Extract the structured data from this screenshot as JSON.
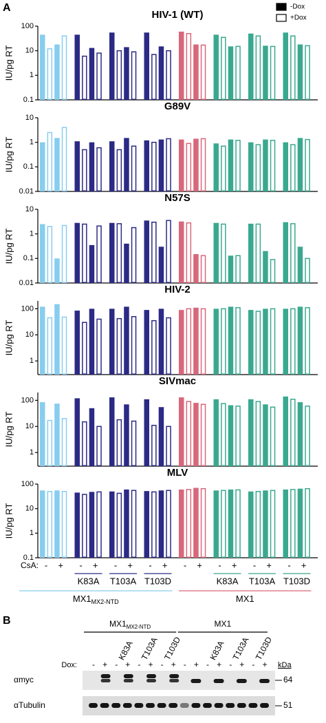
{
  "panel_a": "A",
  "panel_b": "B",
  "chart_data": [
    {
      "type": "bar",
      "title": "HIV-1 (WT)",
      "ylabel": "IU/pg RT",
      "log_scale": true,
      "legend": "top-right",
      "ylim": [
        0.1,
        100
      ],
      "yticks": [
        0.1,
        1,
        10,
        100
      ],
      "series": [
        {
          "name": "-Dox",
          "style": "filled",
          "values": [
            45,
            18,
            45,
            13,
            55,
            14,
            55,
            15,
            60,
            18,
            45,
            15,
            50,
            16,
            55,
            18
          ]
        },
        {
          "name": "+Dox",
          "style": "open",
          "values": [
            12,
            40,
            6,
            8,
            10,
            9,
            7,
            10,
            50,
            17,
            35,
            15,
            40,
            15,
            40,
            16
          ]
        }
      ]
    },
    {
      "type": "bar",
      "title": "G89V",
      "ylabel": "IU/pg RT",
      "log_scale": true,
      "ylim": [
        0.01,
        10
      ],
      "yticks": [
        0.01,
        0.1,
        1,
        10
      ],
      "series": [
        {
          "name": "-Dox",
          "style": "filled",
          "values": [
            1.0,
            1.5,
            1.1,
            1.0,
            1.1,
            1.5,
            1.2,
            1.3,
            1.3,
            1.4,
            0.9,
            1.3,
            1.0,
            1.3,
            1.0,
            1.5
          ]
        },
        {
          "name": "+Dox",
          "style": "open",
          "values": [
            2.5,
            4,
            0.5,
            0.6,
            0.5,
            0.7,
            1.0,
            1.4,
            0.9,
            1.4,
            0.7,
            1.2,
            0.8,
            1.2,
            0.8,
            1.3
          ]
        }
      ]
    },
    {
      "type": "bar",
      "title": "N57S",
      "ylabel": "IU/pg RT",
      "log_scale": true,
      "ylim": [
        0.01,
        10
      ],
      "yticks": [
        0.01,
        0.1,
        1,
        10
      ],
      "series": [
        {
          "name": "-Dox",
          "style": "filled",
          "values": [
            2.5,
            0.1,
            2.8,
            0.35,
            2.8,
            0.4,
            3.5,
            0.3,
            3.2,
            0.15,
            2.8,
            0.13,
            2.6,
            0.2,
            3.0,
            0.3
          ]
        },
        {
          "name": "+Dox",
          "style": "open",
          "values": [
            2,
            2.2,
            2.5,
            2.1,
            2.6,
            1.8,
            3.0,
            3.5,
            2.8,
            0.13,
            2.5,
            0.13,
            2.5,
            0.09,
            2.6,
            0.1
          ]
        }
      ]
    },
    {
      "type": "bar",
      "title": "HIV-2",
      "ylabel": "IU/pg RT",
      "log_scale": true,
      "ylim": [
        0.3,
        200
      ],
      "yticks": [
        1,
        10,
        100
      ],
      "series": [
        {
          "name": "-Dox",
          "style": "filled",
          "values": [
            120,
            150,
            85,
            100,
            100,
            120,
            90,
            100,
            90,
            110,
            100,
            120,
            90,
            100,
            100,
            120
          ]
        },
        {
          "name": "+Dox",
          "style": "open",
          "values": [
            45,
            48,
            30,
            40,
            42,
            50,
            35,
            45,
            100,
            100,
            100,
            110,
            80,
            100,
            100,
            110
          ]
        }
      ]
    },
    {
      "type": "bar",
      "title": "SIVmac",
      "ylabel": "IU/pg RT",
      "log_scale": true,
      "ylim": [
        0.3,
        200
      ],
      "yticks": [
        1,
        10,
        100
      ],
      "series": [
        {
          "name": "-Dox",
          "style": "filled",
          "values": [
            85,
            75,
            120,
            50,
            130,
            70,
            110,
            55,
            130,
            80,
            110,
            65,
            110,
            70,
            140,
            85
          ]
        },
        {
          "name": "+Dox",
          "style": "open",
          "values": [
            17,
            20,
            15,
            10,
            18,
            16,
            11,
            10,
            90,
            70,
            75,
            60,
            90,
            55,
            110,
            60
          ]
        }
      ]
    },
    {
      "type": "bar",
      "title": "MLV",
      "ylabel": "IU/pg RT",
      "log_scale": true,
      "ylim": [
        0.1,
        100
      ],
      "yticks": [
        0.1,
        1,
        10,
        100
      ],
      "series": [
        {
          "name": "-Dox",
          "style": "filled",
          "values": [
            55,
            55,
            45,
            48,
            50,
            60,
            52,
            55,
            60,
            70,
            55,
            60,
            50,
            55,
            60,
            65
          ]
        },
        {
          "name": "+Dox",
          "style": "open",
          "values": [
            50,
            50,
            38,
            48,
            42,
            55,
            48,
            55,
            60,
            65,
            55,
            58,
            50,
            55,
            60,
            65
          ]
        }
      ]
    }
  ],
  "x_axis": {
    "csa_label": "CsA:",
    "csa_values": [
      "-",
      "+"
    ],
    "groups": [
      {
        "label": null,
        "color": "#87cdee"
      },
      {
        "label": "K83A",
        "color": "#2b2a85"
      },
      {
        "label": "T103A",
        "color": "#2b2a85"
      },
      {
        "label": "T103D",
        "color": "#2b2a85"
      },
      {
        "label": null,
        "color": "#d9677a"
      },
      {
        "label": "K83A",
        "color": "#3aa88f"
      },
      {
        "label": "T103A",
        "color": "#3aa88f"
      },
      {
        "label": "T103D",
        "color": "#3aa88f"
      }
    ],
    "families": [
      {
        "label": "MX1",
        "subscript": "MX2-NTD",
        "color": "#87cdee"
      },
      {
        "label": "MX1",
        "color": "#d9677a"
      }
    ]
  },
  "blot": {
    "dox_label": "Dox:",
    "dox_values": [
      "-",
      "+"
    ],
    "kda_label": "kDa",
    "rows": [
      {
        "label": "αmyc",
        "marker": 64
      },
      {
        "label": "αTubulin",
        "marker": 51
      }
    ]
  }
}
